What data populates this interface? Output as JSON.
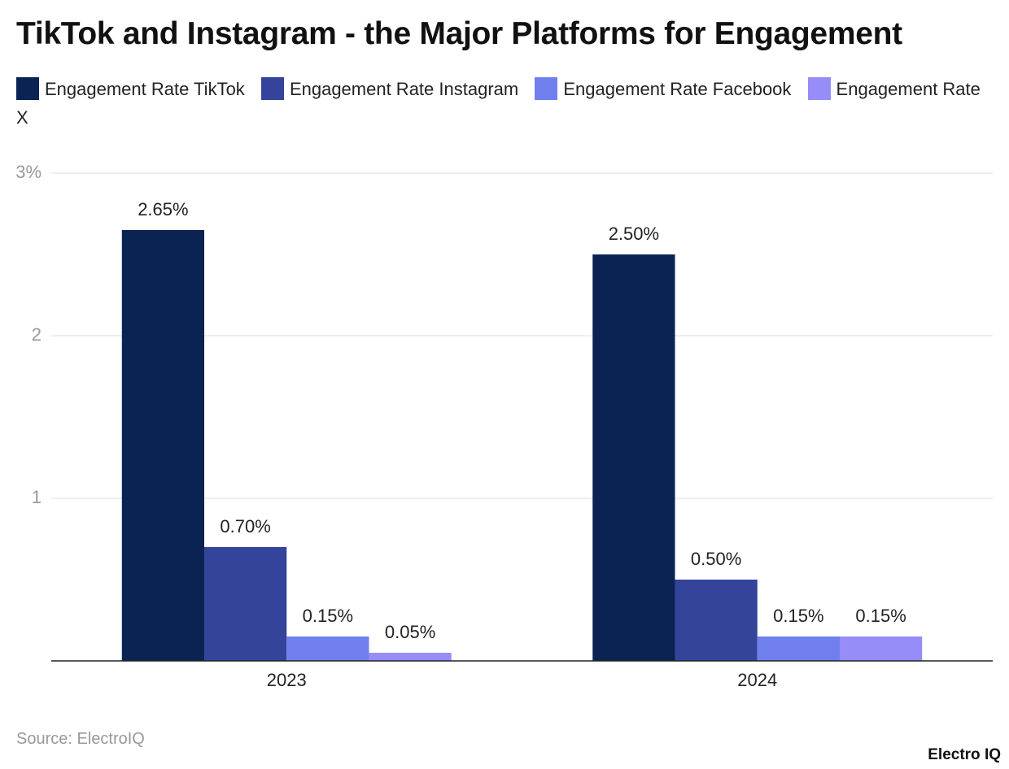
{
  "chart_data": {
    "type": "bar",
    "title": "TikTok and Instagram - the Major Platforms for Engagement",
    "categories": [
      "2023",
      "2024"
    ],
    "series": [
      {
        "name": "Engagement Rate TikTok",
        "color": "#0b2352",
        "values": [
          2.65,
          2.5
        ],
        "value_labels": [
          "2.65%",
          "2.50%"
        ]
      },
      {
        "name": "Engagement Rate Instagram",
        "color": "#34449a",
        "values": [
          0.7,
          0.5
        ],
        "value_labels": [
          "0.70%",
          "0.50%"
        ]
      },
      {
        "name": "Engagement Rate Facebook",
        "color": "#6f80ee",
        "values": [
          0.15,
          0.15
        ],
        "value_labels": [
          "0.15%",
          "0.15%"
        ]
      },
      {
        "name": "Engagement Rate X",
        "color": "#968df8",
        "values": [
          0.05,
          0.15
        ],
        "value_labels": [
          "0.05%",
          "0.15%"
        ]
      }
    ],
    "ylim": [
      0,
      3
    ],
    "yticks": [
      1,
      2,
      {
        "value": 3,
        "label": "3%"
      }
    ],
    "grid": true,
    "source": "Source: ElectroIQ",
    "brand": "Electro IQ"
  }
}
